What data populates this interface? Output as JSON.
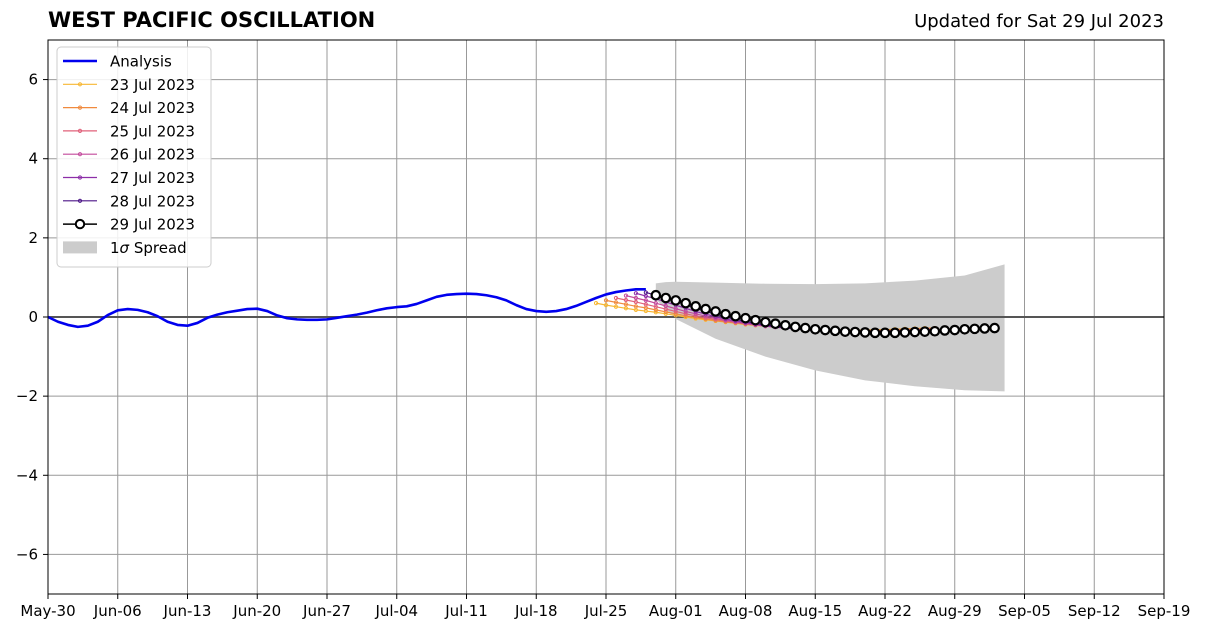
{
  "chart_data": {
    "type": "line",
    "title": "WEST PACIFIC OSCILLATION",
    "subtitle": "Updated for Sat 29 Jul 2023",
    "xlabel": "",
    "ylabel": "",
    "ylim": [
      -7,
      7
    ],
    "yticks": [
      -6,
      -4,
      -2,
      0,
      2,
      4,
      6
    ],
    "ytick_labels": [
      "−6",
      "−4",
      "−2",
      "0",
      "2",
      "4",
      "6"
    ],
    "xlim": [
      "2023-05-30",
      "2023-09-19"
    ],
    "xticks": [
      "2023-05-30",
      "2023-06-06",
      "2023-06-13",
      "2023-06-20",
      "2023-06-27",
      "2023-07-04",
      "2023-07-11",
      "2023-07-18",
      "2023-07-25",
      "2023-08-01",
      "2023-08-08",
      "2023-08-15",
      "2023-08-22",
      "2023-08-29",
      "2023-09-05",
      "2023-09-12",
      "2023-09-19"
    ],
    "xtick_labels": [
      "May-30",
      "Jun-06",
      "Jun-13",
      "Jun-20",
      "Jun-27",
      "Jul-04",
      "Jul-11",
      "Jul-18",
      "Jul-25",
      "Aug-01",
      "Aug-08",
      "Aug-15",
      "Aug-22",
      "Aug-29",
      "Sep-05",
      "Sep-12",
      "Sep-19"
    ],
    "grid": true,
    "legend_position": "top-left",
    "spread_label_prefix": "1",
    "spread_label_sigma": "σ",
    "spread_label_suffix": " Spread",
    "analysis": {
      "name": "Analysis",
      "color": "#0000ee",
      "x": [
        "2023-05-30",
        "2023-05-31",
        "2023-06-01",
        "2023-06-02",
        "2023-06-03",
        "2023-06-04",
        "2023-06-05",
        "2023-06-06",
        "2023-06-07",
        "2023-06-08",
        "2023-06-09",
        "2023-06-10",
        "2023-06-11",
        "2023-06-12",
        "2023-06-13",
        "2023-06-14",
        "2023-06-15",
        "2023-06-16",
        "2023-06-17",
        "2023-06-18",
        "2023-06-19",
        "2023-06-20",
        "2023-06-21",
        "2023-06-22",
        "2023-06-23",
        "2023-06-24",
        "2023-06-25",
        "2023-06-26",
        "2023-06-27",
        "2023-06-28",
        "2023-06-29",
        "2023-06-30",
        "2023-07-01",
        "2023-07-02",
        "2023-07-03",
        "2023-07-04",
        "2023-07-05",
        "2023-07-06",
        "2023-07-07",
        "2023-07-08",
        "2023-07-09",
        "2023-07-10",
        "2023-07-11",
        "2023-07-12",
        "2023-07-13",
        "2023-07-14",
        "2023-07-15",
        "2023-07-16",
        "2023-07-17",
        "2023-07-18",
        "2023-07-19",
        "2023-07-20",
        "2023-07-21",
        "2023-07-22",
        "2023-07-23",
        "2023-07-24",
        "2023-07-25",
        "2023-07-26",
        "2023-07-27",
        "2023-07-28",
        "2023-07-29"
      ],
      "y": [
        0.0,
        -0.12,
        -0.2,
        -0.25,
        -0.22,
        -0.12,
        0.05,
        0.17,
        0.2,
        0.18,
        0.12,
        0.02,
        -0.12,
        -0.2,
        -0.22,
        -0.15,
        -0.02,
        0.06,
        0.12,
        0.16,
        0.2,
        0.21,
        0.15,
        0.04,
        -0.03,
        -0.06,
        -0.07,
        -0.07,
        -0.06,
        -0.02,
        0.02,
        0.06,
        0.11,
        0.17,
        0.22,
        0.25,
        0.27,
        0.33,
        0.42,
        0.51,
        0.56,
        0.58,
        0.59,
        0.58,
        0.55,
        0.5,
        0.42,
        0.3,
        0.2,
        0.15,
        0.13,
        0.15,
        0.2,
        0.28,
        0.38,
        0.48,
        0.57,
        0.63,
        0.67,
        0.7,
        0.7
      ]
    },
    "forecasts": [
      {
        "name": "23 Jul 2023",
        "color": "#f7b733",
        "x_start": "2023-07-24",
        "y": [
          0.35,
          0.3,
          0.26,
          0.22,
          0.18,
          0.15,
          0.12,
          0.08,
          0.04,
          0.0,
          -0.04,
          -0.07,
          -0.1,
          -0.13,
          -0.16,
          -0.19,
          -0.21,
          -0.23,
          -0.25,
          -0.27,
          -0.29,
          -0.3,
          -0.31,
          -0.32,
          -0.33,
          -0.33,
          -0.33,
          -0.33,
          -0.32,
          -0.32,
          -0.31,
          -0.3,
          -0.29,
          -0.28,
          -0.28
        ]
      },
      {
        "name": "24 Jul 2023",
        "color": "#f08a3e",
        "x_start": "2023-07-25",
        "y": [
          0.42,
          0.37,
          0.32,
          0.27,
          0.23,
          0.18,
          0.13,
          0.08,
          0.03,
          -0.01,
          -0.05,
          -0.09,
          -0.12,
          -0.15,
          -0.18,
          -0.21,
          -0.23,
          -0.25,
          -0.27,
          -0.29,
          -0.31,
          -0.32,
          -0.33,
          -0.34,
          -0.34,
          -0.34,
          -0.34,
          -0.33,
          -0.33,
          -0.32,
          -0.31,
          -0.3,
          -0.29,
          -0.28
        ]
      },
      {
        "name": "25 Jul 2023",
        "color": "#e0607a",
        "x_start": "2023-07-26",
        "y": [
          0.48,
          0.43,
          0.38,
          0.32,
          0.26,
          0.2,
          0.14,
          0.08,
          0.03,
          -0.02,
          -0.06,
          -0.1,
          -0.14,
          -0.17,
          -0.2,
          -0.23,
          -0.25,
          -0.27,
          -0.29,
          -0.31,
          -0.33,
          -0.34,
          -0.35,
          -0.36,
          -0.36,
          -0.36,
          -0.35,
          -0.35,
          -0.34,
          -0.33,
          -0.32,
          -0.31,
          -0.3
        ]
      },
      {
        "name": "26 Jul 2023",
        "color": "#c34a9c",
        "x_start": "2023-07-27",
        "y": [
          0.54,
          0.48,
          0.42,
          0.35,
          0.28,
          0.21,
          0.14,
          0.08,
          0.02,
          -0.03,
          -0.08,
          -0.12,
          -0.16,
          -0.2,
          -0.23,
          -0.26,
          -0.28,
          -0.3,
          -0.32,
          -0.34,
          -0.35,
          -0.36,
          -0.37,
          -0.37,
          -0.37,
          -0.37,
          -0.36,
          -0.35,
          -0.34,
          -0.33,
          -0.32,
          -0.31
        ]
      },
      {
        "name": "27 Jul 2023",
        "color": "#8d2ea8",
        "x_start": "2023-07-28",
        "y": [
          0.6,
          0.53,
          0.46,
          0.38,
          0.3,
          0.22,
          0.14,
          0.07,
          0.01,
          -0.05,
          -0.1,
          -0.14,
          -0.18,
          -0.22,
          -0.25,
          -0.28,
          -0.3,
          -0.32,
          -0.34,
          -0.36,
          -0.37,
          -0.38,
          -0.38,
          -0.38,
          -0.38,
          -0.37,
          -0.36,
          -0.35,
          -0.34,
          -0.33,
          -0.32
        ]
      },
      {
        "name": "28 Jul 2023",
        "color": "#4b1487",
        "x_start": "2023-07-29",
        "y": [
          0.62,
          0.55,
          0.47,
          0.39,
          0.31,
          0.22,
          0.14,
          0.07,
          0.0,
          -0.06,
          -0.11,
          -0.16,
          -0.2,
          -0.24,
          -0.27,
          -0.3,
          -0.32,
          -0.34,
          -0.36,
          -0.37,
          -0.38,
          -0.39,
          -0.39,
          -0.39,
          -0.38,
          -0.37,
          -0.36,
          -0.35,
          -0.34,
          -0.33
        ]
      },
      {
        "name": "29 Jul 2023",
        "color": "#000000",
        "x_start": "2023-07-30",
        "y": [
          0.55,
          0.48,
          0.42,
          0.35,
          0.27,
          0.2,
          0.14,
          0.07,
          0.02,
          -0.03,
          -0.08,
          -0.13,
          -0.17,
          -0.21,
          -0.25,
          -0.28,
          -0.31,
          -0.33,
          -0.35,
          -0.37,
          -0.38,
          -0.39,
          -0.4,
          -0.4,
          -0.4,
          -0.39,
          -0.38,
          -0.37,
          -0.36,
          -0.34,
          -0.33,
          -0.31,
          -0.3,
          -0.29,
          -0.28
        ]
      }
    ],
    "spread": {
      "name": "1σ Spread",
      "color": "#cccccc",
      "x": [
        "2023-07-30",
        "2023-07-31",
        "2023-08-01",
        "2023-08-05",
        "2023-08-10",
        "2023-08-15",
        "2023-08-20",
        "2023-08-25",
        "2023-08-30",
        "2023-09-03"
      ],
      "upper": [
        0.85,
        0.88,
        0.89,
        0.87,
        0.84,
        0.83,
        0.85,
        0.92,
        1.05,
        1.33
      ],
      "lower": [
        0.45,
        0.2,
        -0.05,
        -0.55,
        -1.0,
        -1.35,
        -1.6,
        -1.75,
        -1.85,
        -1.88
      ]
    }
  }
}
